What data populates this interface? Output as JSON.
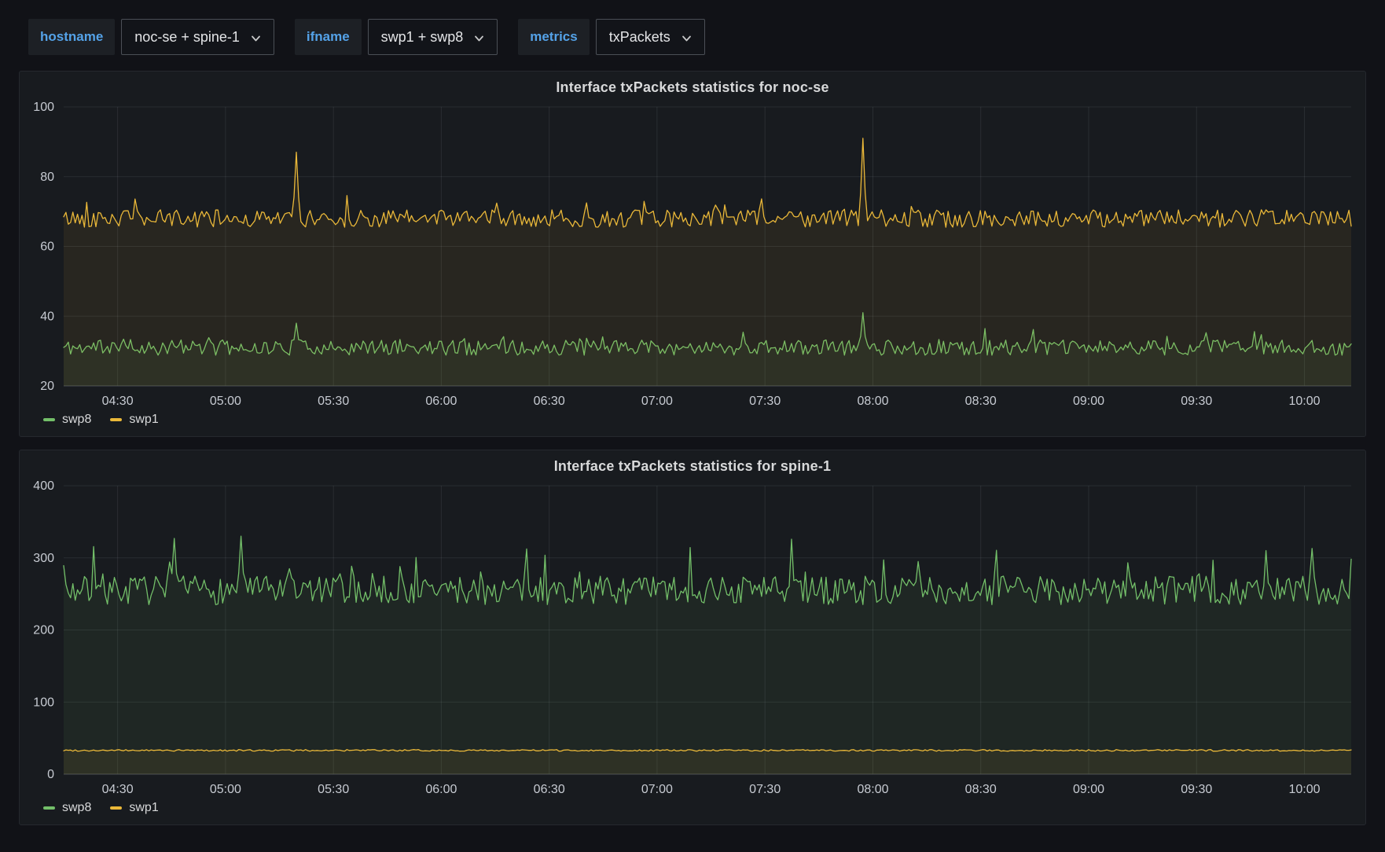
{
  "toolbar": {
    "variables": [
      {
        "name": "hostname",
        "label": "hostname",
        "value": "noc-se + spine-1"
      },
      {
        "name": "ifname",
        "label": "ifname",
        "value": "swp1 + swp8"
      },
      {
        "name": "metrics",
        "label": "metrics",
        "value": "txPackets"
      }
    ]
  },
  "theme": {
    "page_bg": "#111217",
    "panel_bg": "#181b1f",
    "panel_border": "#25282e",
    "title_text": "#d8d9da",
    "tick_text": "#c7cbd2",
    "grid": "rgba(201,209,217,0.10)",
    "axis_line": "#4a4e55",
    "label_blue": "#54a2e8",
    "green": "#73bf69",
    "yellow": "#eab839"
  },
  "chart_data": [
    {
      "type": "line",
      "title": "Interface txPackets statistics for noc-se",
      "x_domain_minutes": [
        255,
        613
      ],
      "x_ticks": [
        {
          "m": 270,
          "label": "04:30"
        },
        {
          "m": 300,
          "label": "05:00"
        },
        {
          "m": 330,
          "label": "05:30"
        },
        {
          "m": 360,
          "label": "06:00"
        },
        {
          "m": 390,
          "label": "06:30"
        },
        {
          "m": 420,
          "label": "07:00"
        },
        {
          "m": 450,
          "label": "07:30"
        },
        {
          "m": 480,
          "label": "08:00"
        },
        {
          "m": 510,
          "label": "08:30"
        },
        {
          "m": 540,
          "label": "09:00"
        },
        {
          "m": 570,
          "label": "09:30"
        },
        {
          "m": 600,
          "label": "10:00"
        }
      ],
      "ylim": [
        20,
        100
      ],
      "y_ticks": [
        20,
        40,
        60,
        80,
        100
      ],
      "grid": true,
      "legend_position": "bottom-left",
      "legend": [
        {
          "name": "swp8",
          "color": "#73bf69"
        },
        {
          "name": "swp1",
          "color": "#eab839"
        }
      ],
      "series": [
        {
          "name": "swp8",
          "color": "#73bf69",
          "baseline": 31,
          "noise": 2.2,
          "burst_chance": 0.08,
          "burst_max": 4,
          "spikes": [
            {
              "m": 320,
              "v": 38
            },
            {
              "m": 477,
              "v": 41
            }
          ],
          "seed": 11
        },
        {
          "name": "swp1",
          "color": "#eab839",
          "baseline": 68,
          "noise": 2.5,
          "burst_chance": 0.08,
          "burst_max": 5,
          "spikes": [
            {
              "m": 320,
              "v": 87
            },
            {
              "m": 477,
              "v": 91
            }
          ],
          "seed": 42
        }
      ]
    },
    {
      "type": "line",
      "title": "Interface txPackets statistics for spine-1",
      "x_domain_minutes": [
        255,
        613
      ],
      "x_ticks": [
        {
          "m": 270,
          "label": "04:30"
        },
        {
          "m": 300,
          "label": "05:00"
        },
        {
          "m": 330,
          "label": "05:30"
        },
        {
          "m": 360,
          "label": "06:00"
        },
        {
          "m": 390,
          "label": "06:30"
        },
        {
          "m": 420,
          "label": "07:00"
        },
        {
          "m": 450,
          "label": "07:30"
        },
        {
          "m": 480,
          "label": "08:00"
        },
        {
          "m": 510,
          "label": "08:30"
        },
        {
          "m": 540,
          "label": "09:00"
        },
        {
          "m": 570,
          "label": "09:30"
        },
        {
          "m": 600,
          "label": "10:00"
        }
      ],
      "ylim": [
        0,
        400
      ],
      "y_ticks": [
        0,
        100,
        200,
        300,
        400
      ],
      "grid": true,
      "legend_position": "bottom-left",
      "legend": [
        {
          "name": "swp8",
          "color": "#73bf69"
        },
        {
          "name": "swp1",
          "color": "#eab839"
        }
      ],
      "series": [
        {
          "name": "swp8",
          "color": "#73bf69",
          "baseline": 255,
          "noise": 20,
          "burst_chance": 0.08,
          "burst_max": 55,
          "spikes": [
            {
              "m": 286,
              "v": 327
            },
            {
              "m": 304,
              "v": 330
            },
            {
              "m": 602,
              "v": 313
            }
          ],
          "seed": 7
        },
        {
          "name": "swp1",
          "color": "#eab839",
          "baseline": 33,
          "noise": 1.1,
          "burst_chance": 0,
          "burst_max": 0,
          "spikes": [],
          "seed": 99
        }
      ]
    }
  ]
}
